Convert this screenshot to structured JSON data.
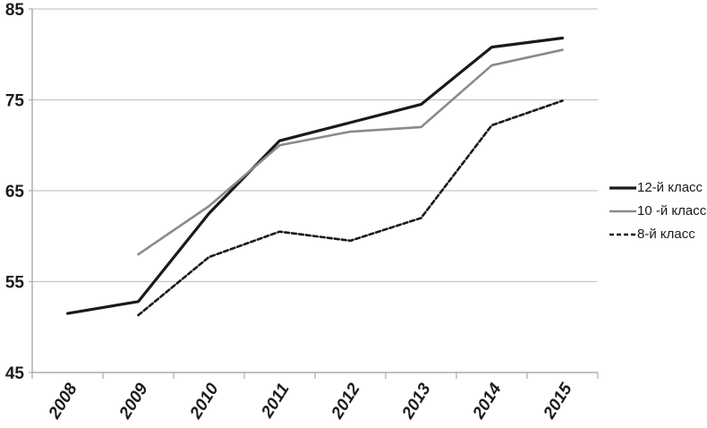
{
  "figure": {
    "background": "#ffffff"
  },
  "style": {
    "grid_color": "#c6c6c6",
    "axis_color": "#adadad",
    "tick_label_color": "#1c1c1c",
    "legend_text_color": "#1a1a1a"
  },
  "chart_data": {
    "type": "line",
    "title": "",
    "xlabel": "",
    "ylabel": "",
    "x_labels": [
      "2008",
      "2009",
      "2010",
      "2011",
      "2012",
      "2013",
      "2014",
      "2015"
    ],
    "series": [
      {
        "name": "12-й класс",
        "style": "solid",
        "color": "#1a1a1a",
        "line_width": 3.2,
        "values": [
          51.5,
          52.8,
          62.5,
          70.5,
          72.5,
          74.5,
          80.8,
          81.8
        ]
      },
      {
        "name": "10 -й класс",
        "style": "solid",
        "color": "#8a8a8a",
        "line_width": 2.6,
        "values": [
          null,
          58.0,
          63.3,
          70.0,
          71.5,
          72.0,
          78.8,
          80.5
        ]
      },
      {
        "name": "8-й класс",
        "style": "dashed",
        "color": "#1a1a1a",
        "line_width": 2.6,
        "values": [
          null,
          51.3,
          57.7,
          60.5,
          59.5,
          62.0,
          72.2,
          74.9
        ]
      }
    ],
    "ylim": [
      45,
      85
    ],
    "yticks": [
      45,
      55,
      65,
      75,
      85
    ],
    "grid": true,
    "legend_position": "right"
  }
}
